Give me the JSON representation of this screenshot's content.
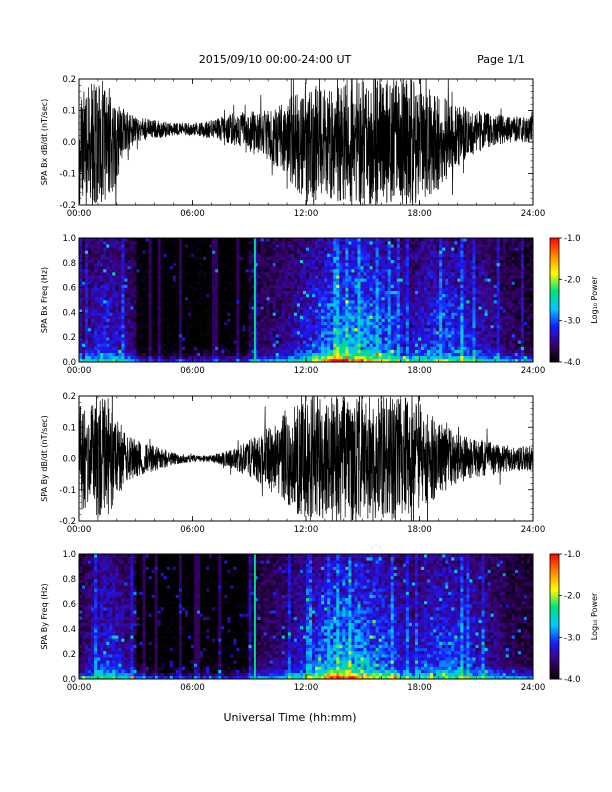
{
  "header": {
    "title": "2015/09/10  00:00-24:00 UT",
    "page": "Page 1/1"
  },
  "colors": {
    "colormap": [
      "#000000",
      "#3a0070",
      "#1a1aff",
      "#00c8ff",
      "#00e07a",
      "#ffff00",
      "#ff8800",
      "#ff0000"
    ]
  },
  "chart_data": [
    {
      "type": "line",
      "title": "",
      "ylabel": "SPA Bx dB/dt (nT/sec)",
      "xlabel": "",
      "xlim": [
        0,
        24
      ],
      "ylim": [
        -0.2,
        0.2
      ],
      "xticks": [
        "00:00",
        "06:00",
        "12:00",
        "18:00",
        "24:00"
      ],
      "yticks": [
        "-0.2",
        "-0.1",
        "0.0",
        "0.1",
        "0.2"
      ],
      "envelope": {
        "x": [
          0,
          0.5,
          1,
          1.5,
          2,
          2.5,
          3,
          4,
          5,
          6,
          7,
          8,
          9,
          10,
          11,
          12,
          13,
          14,
          15,
          16,
          17,
          18,
          19,
          20,
          21,
          22,
          23,
          24
        ],
        "amplitude": [
          0.2,
          0.18,
          0.2,
          0.2,
          0.12,
          0.07,
          0.04,
          0.03,
          0.02,
          0.02,
          0.03,
          0.05,
          0.07,
          0.08,
          0.12,
          0.2,
          0.17,
          0.2,
          0.2,
          0.2,
          0.2,
          0.2,
          0.15,
          0.1,
          0.07,
          0.05,
          0.04,
          0.04
        ],
        "offset": [
          0,
          0,
          0,
          0,
          0,
          0.03,
          0.04,
          0.04,
          0.04,
          0.04,
          0.04,
          0.04,
          0.03,
          0.02,
          0.01,
          0,
          0,
          0,
          0,
          0,
          0,
          0,
          0,
          0.02,
          0.03,
          0.04,
          0.04,
          0.04
        ]
      }
    },
    {
      "type": "heatmap",
      "title": "",
      "ylabel": "SPA Bx Freq (Hz)",
      "xlabel": "",
      "xlim": [
        0,
        24
      ],
      "ylim": [
        0,
        1
      ],
      "xticks": [
        "00:00",
        "06:00",
        "12:00",
        "18:00",
        "24:00"
      ],
      "yticks": [
        "0.0",
        "0.2",
        "0.4",
        "0.6",
        "0.8",
        "1.0"
      ],
      "colorbar": {
        "label": "Log₁₀ Power",
        "range": [
          -4.0,
          -1.0
        ],
        "ticks": [
          "-1.0",
          "-2.0",
          "-3.0",
          "-4.0"
        ]
      },
      "features": {
        "vertical_line_hour": 9.3,
        "activity_center_hour": 14.5
      }
    },
    {
      "type": "line",
      "title": "",
      "ylabel": "SPA By dB/dt (nT/sec)",
      "xlabel": "",
      "xlim": [
        0,
        24
      ],
      "ylim": [
        -0.2,
        0.2
      ],
      "xticks": [
        "00:00",
        "06:00",
        "12:00",
        "18:00",
        "24:00"
      ],
      "yticks": [
        "-0.2",
        "-0.1",
        "0.0",
        "0.1",
        "0.2"
      ],
      "envelope": {
        "x": [
          0,
          0.5,
          1,
          1.5,
          2,
          2.5,
          3,
          4,
          5,
          6,
          7,
          8,
          9,
          10,
          11,
          12,
          13,
          14,
          15,
          16,
          17,
          18,
          19,
          20,
          21,
          22,
          23,
          24
        ],
        "amplitude": [
          0.18,
          0.15,
          0.2,
          0.2,
          0.13,
          0.08,
          0.06,
          0.04,
          0.02,
          0.01,
          0.01,
          0.03,
          0.06,
          0.1,
          0.15,
          0.2,
          0.2,
          0.2,
          0.2,
          0.2,
          0.2,
          0.18,
          0.12,
          0.08,
          0.06,
          0.05,
          0.04,
          0.04
        ],
        "offset": [
          0,
          0,
          0,
          0,
          0,
          0,
          0,
          0,
          0,
          0,
          0,
          0,
          0,
          0,
          0,
          0,
          0,
          0,
          0,
          0,
          0,
          0,
          0,
          0,
          0,
          0,
          0,
          0
        ]
      }
    },
    {
      "type": "heatmap",
      "title": "",
      "ylabel": "SPA By Freq (Hz)",
      "xlabel": "",
      "xlim": [
        0,
        24
      ],
      "ylim": [
        0,
        1
      ],
      "xticks": [
        "00:00",
        "06:00",
        "12:00",
        "18:00",
        "24:00"
      ],
      "yticks": [
        "0.0",
        "0.2",
        "0.4",
        "0.6",
        "0.8",
        "1.0"
      ],
      "colorbar": {
        "label": "Log₁₀ Power",
        "range": [
          -4.0,
          -1.0
        ],
        "ticks": [
          "-1.0",
          "-2.0",
          "-3.0",
          "-4.0"
        ]
      },
      "features": {
        "vertical_line_hour": 9.3,
        "activity_center_hour": 14.5
      }
    }
  ],
  "footer": {
    "xlabel": "Universal Time (hh:mm)"
  }
}
